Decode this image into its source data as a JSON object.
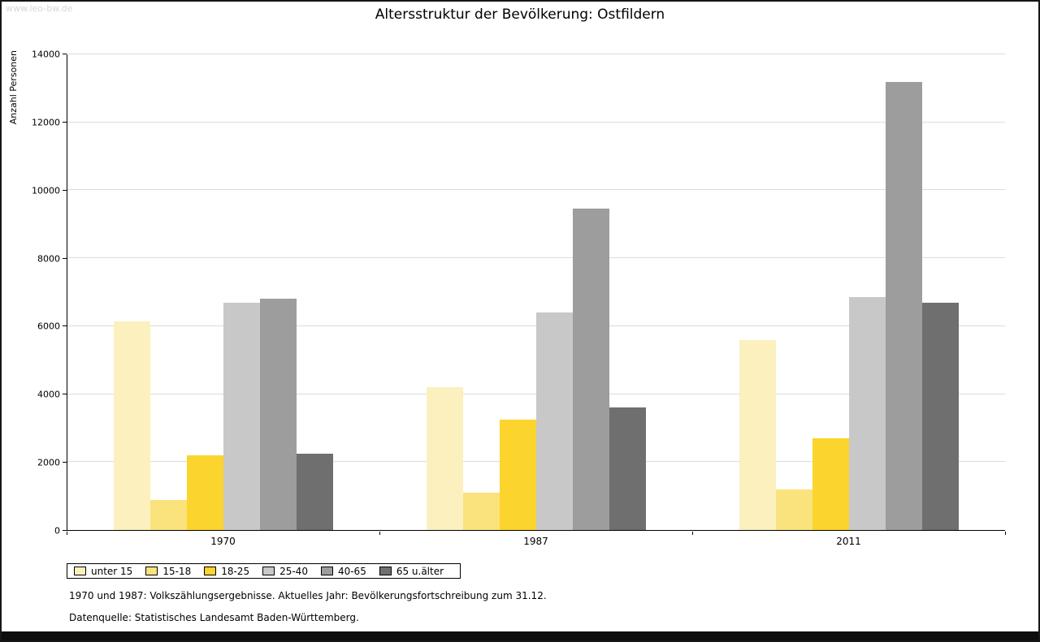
{
  "watermark": "www.leo-bw.de",
  "footnotes": [
    "1970 und 1987: Volkszählungsergebnisse. Aktuelles Jahr: Bevölkerungsfortschreibung zum 31.12.",
    "Datenquelle: Statistisches Landesamt Baden-Württemberg."
  ],
  "chart_data": {
    "type": "bar",
    "title": "Altersstruktur der Bevölkerung: Ostfildern",
    "xlabel": "",
    "ylabel": "Anzahl Personen",
    "ylim": [
      0,
      14000
    ],
    "yticks": [
      0,
      2000,
      4000,
      6000,
      8000,
      10000,
      12000,
      14000
    ],
    "grid": true,
    "legend_position": "bottom-left",
    "categories": [
      "1970",
      "1987",
      "2011"
    ],
    "series": [
      {
        "name": "unter 15",
        "color": "#fbf0be",
        "values": [
          6150,
          4200,
          5600
        ]
      },
      {
        "name": "15-18",
        "color": "#fae27d",
        "values": [
          880,
          1100,
          1200
        ]
      },
      {
        "name": "18-25",
        "color": "#fbd42e",
        "values": [
          2200,
          3250,
          2700
        ]
      },
      {
        "name": "25-40",
        "color": "#c8c8c8",
        "values": [
          6700,
          6400,
          6850
        ]
      },
      {
        "name": "40-65",
        "color": "#9d9d9d",
        "values": [
          6800,
          9450,
          13200
        ]
      },
      {
        "name": "65 u.älter",
        "color": "#6f6f6f",
        "values": [
          2250,
          3600,
          6700
        ]
      }
    ]
  }
}
